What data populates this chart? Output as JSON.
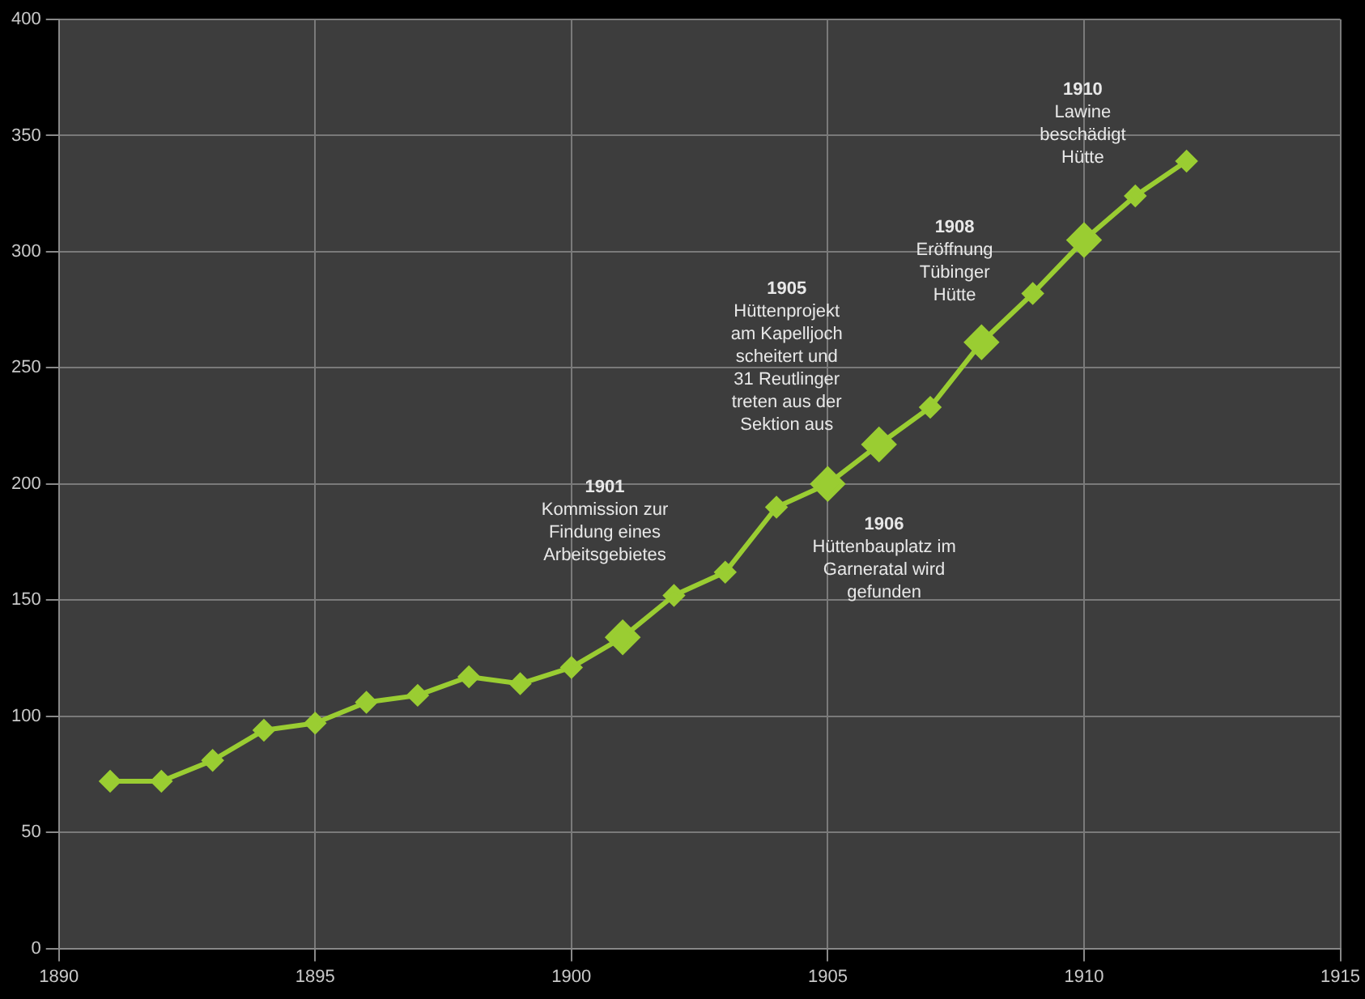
{
  "chart_data": {
    "type": "line",
    "x": [
      1891,
      1892,
      1893,
      1894,
      1895,
      1896,
      1897,
      1898,
      1899,
      1900,
      1901,
      1902,
      1903,
      1904,
      1905,
      1906,
      1907,
      1908,
      1909,
      1910,
      1911,
      1912
    ],
    "series": [
      {
        "color": "#9acd32",
        "values": [
          72,
          72,
          81,
          94,
          97,
          106,
          109,
          117,
          114,
          121,
          134,
          152,
          162,
          190,
          200,
          217,
          233,
          261,
          282,
          305,
          324,
          339
        ]
      }
    ],
    "xlim": [
      1890,
      1915
    ],
    "xticks": [
      1890,
      1895,
      1900,
      1905,
      1910,
      1915
    ],
    "ylim": [
      0,
      400
    ],
    "yticks": [
      0,
      50,
      100,
      150,
      200,
      250,
      300,
      350,
      400
    ],
    "grid": true,
    "marker": "diamond",
    "line_style": "solid",
    "legend": false,
    "annotations": [
      "1901\nKommission zur\nFindung eines\nArbeitsgebietes",
      "1905\nHüttenprojekt\nam Kapelljoch\nscheitert und\n31 Reutlinger\ntreten aus der\nSektion aus",
      "1906\nHüttenbauplatz im\nGarneratal wird\ngefunden",
      "1908\nEröffnung\nTübinger\nHütte",
      "1910\nLawine\nbeschädigt\nHütte"
    ]
  }
}
